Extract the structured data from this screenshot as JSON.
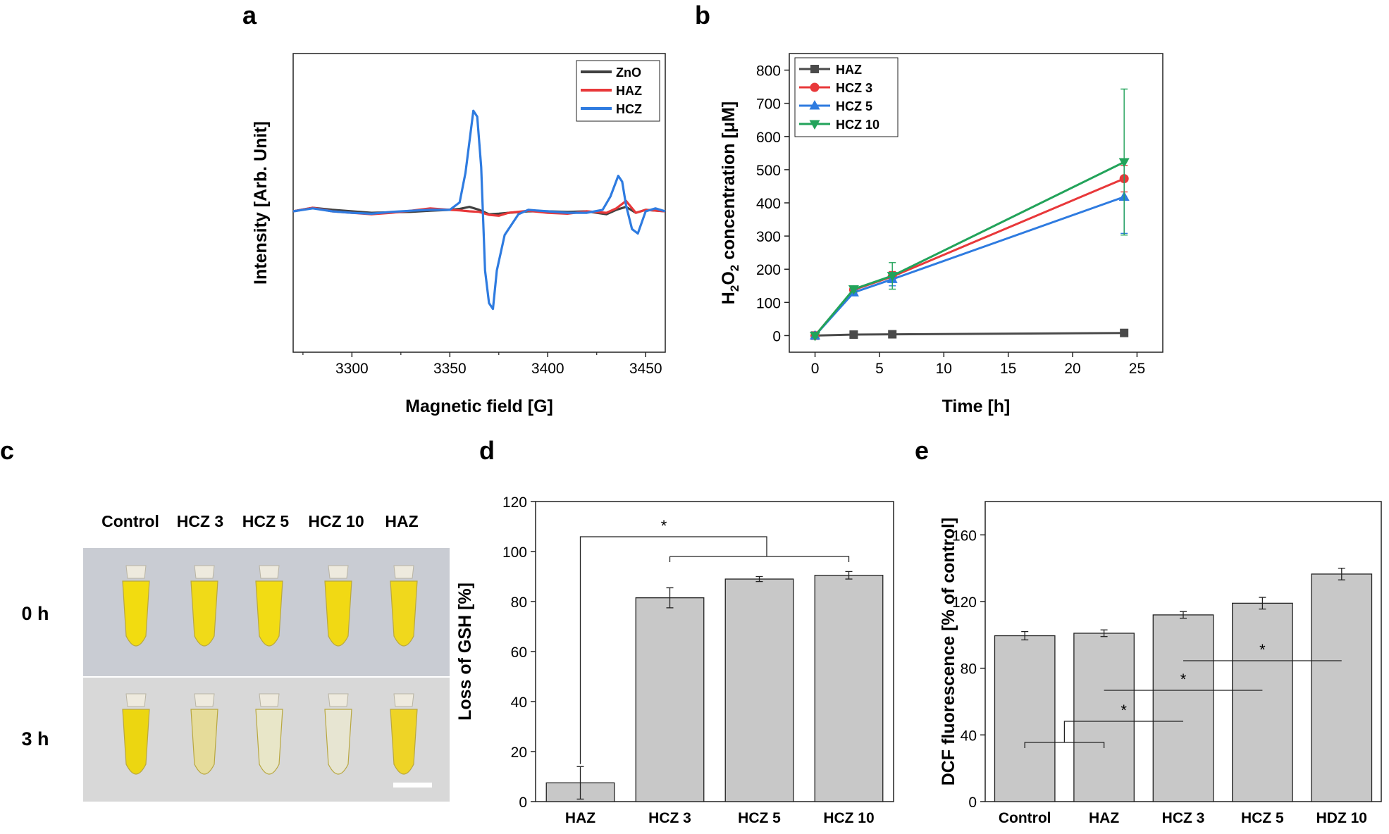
{
  "panels": {
    "a": {
      "letter": "a"
    },
    "b": {
      "letter": "b"
    },
    "c": {
      "letter": "c"
    },
    "d": {
      "letter": "d"
    },
    "e": {
      "letter": "e"
    }
  },
  "chart_data": [
    {
      "id": "a",
      "type": "line",
      "xlabel": "Magnetic field [G]",
      "ylabel": "Intensity [Arb. Unit]",
      "xlim": [
        3270,
        3460
      ],
      "xticks": [
        3300,
        3350,
        3400,
        3450
      ],
      "yticks_shown": false,
      "legend_position": "top-right",
      "series": [
        {
          "name": "ZnO",
          "color": "#404040",
          "x": [
            3270,
            3280,
            3290,
            3300,
            3310,
            3320,
            3330,
            3340,
            3350,
            3355,
            3360,
            3365,
            3370,
            3375,
            3380,
            3390,
            3400,
            3410,
            3420,
            3430,
            3435,
            3440,
            3445,
            3450,
            3460
          ],
          "y": [
            0,
            0.12,
            0.05,
            0,
            -0.05,
            -0.03,
            -0.02,
            0.02,
            0.05,
            0.08,
            0.15,
            0.05,
            -0.1,
            -0.08,
            -0.05,
            0,
            0,
            -0.02,
            0,
            -0.1,
            0.05,
            0.15,
            -0.05,
            0.05,
            0
          ]
        },
        {
          "name": "HAZ",
          "color": "#e8383a",
          "x": [
            3270,
            3280,
            3290,
            3300,
            3310,
            3320,
            3330,
            3340,
            3350,
            3355,
            3360,
            3365,
            3370,
            3375,
            3380,
            3390,
            3400,
            3410,
            3420,
            3430,
            3435,
            3440,
            3445,
            3450,
            3460
          ],
          "y": [
            0,
            0.12,
            0,
            -0.05,
            -0.1,
            -0.05,
            0.02,
            0.1,
            0.05,
            0.03,
            0,
            -0.02,
            -0.12,
            -0.15,
            -0.05,
            0.02,
            -0.05,
            -0.08,
            0,
            -0.05,
            0.1,
            0.35,
            -0.05,
            0.05,
            0
          ]
        },
        {
          "name": "HCZ",
          "color": "#2e7be0",
          "x": [
            3270,
            3280,
            3290,
            3300,
            3310,
            3320,
            3330,
            3340,
            3350,
            3355,
            3358,
            3362,
            3364,
            3366,
            3368,
            3370,
            3372,
            3374,
            3378,
            3385,
            3390,
            3400,
            3410,
            3420,
            3428,
            3432,
            3436,
            3438,
            3440,
            3443,
            3446,
            3450,
            3455,
            3460
          ],
          "y": [
            0,
            0.1,
            0,
            -0.05,
            -0.08,
            -0.02,
            0.02,
            0.05,
            0.05,
            0.3,
            1.3,
            3.4,
            3.2,
            1.5,
            -2.0,
            -3.1,
            -3.3,
            -2.0,
            -0.8,
            -0.1,
            0.05,
            0,
            -0.05,
            -0.05,
            0.05,
            0.5,
            1.2,
            1.0,
            0.2,
            -0.6,
            -0.75,
            0,
            0.1,
            0
          ]
        }
      ]
    },
    {
      "id": "b",
      "type": "line",
      "xlabel": "Time [h]",
      "ylabel_main": "H",
      "ylabel_sub1": "2",
      "ylabel_mid": "O",
      "ylabel_sub2": "2",
      "ylabel_rest": " concentration [μM]",
      "xlim": [
        -2,
        27
      ],
      "ylim": [
        -50,
        850
      ],
      "xticks": [
        0,
        5,
        10,
        15,
        20,
        25
      ],
      "yticks": [
        0,
        100,
        200,
        300,
        400,
        500,
        600,
        700,
        800
      ],
      "legend_position": "top-left",
      "x": [
        0,
        3,
        6,
        24
      ],
      "series": [
        {
          "name": "HAZ",
          "color": "#4a4a4a",
          "marker": "square",
          "values": [
            0,
            3,
            4,
            8
          ],
          "errors": [
            2,
            2,
            2,
            3
          ]
        },
        {
          "name": "HCZ 3",
          "color": "#e8383a",
          "marker": "circle",
          "values": [
            0,
            138,
            178,
            473
          ],
          "errors": [
            5,
            8,
            15,
            40
          ]
        },
        {
          "name": "HCZ 5",
          "color": "#2e7be0",
          "marker": "triangle-up",
          "values": [
            0,
            130,
            170,
            418
          ],
          "errors": [
            5,
            8,
            20,
            110
          ]
        },
        {
          "name": "HCZ 10",
          "color": "#22a35a",
          "marker": "triangle-down",
          "values": [
            0,
            140,
            180,
            523
          ],
          "errors": [
            5,
            8,
            40,
            220
          ]
        }
      ]
    },
    {
      "id": "d",
      "type": "bar",
      "ylabel": "Loss of GSH [%]",
      "ylim": [
        0,
        120
      ],
      "yticks": [
        0,
        20,
        40,
        60,
        80,
        100,
        120
      ],
      "categories": [
        "HAZ",
        "HCZ 3",
        "HCZ 5",
        "HCZ 10"
      ],
      "values": [
        7.5,
        81.5,
        89,
        90.5
      ],
      "errors": [
        6.5,
        4,
        1,
        1.5
      ],
      "bar_color": "#c8c8c8",
      "annotations": [
        {
          "text": "*"
        }
      ]
    },
    {
      "id": "e",
      "type": "bar",
      "ylabel": "DCF fluorescence [% of control]",
      "ylim": [
        0,
        180
      ],
      "yticks": [
        0,
        40,
        80,
        120,
        160
      ],
      "categories": [
        "Control",
        "HAZ",
        "HCZ 3",
        "HCZ 5",
        "HDZ 10"
      ],
      "values": [
        99.5,
        101,
        112,
        119,
        136.5
      ],
      "errors": [
        2.5,
        2,
        2,
        3.5,
        3.5
      ],
      "bar_color": "#c8c8c8",
      "annotations": [
        {
          "text": "*"
        },
        {
          "text": "*"
        },
        {
          "text": "*"
        }
      ]
    }
  ],
  "photo": {
    "columns": [
      "Control",
      "HCZ 3",
      "HCZ 5",
      "HCZ 10",
      "HAZ"
    ],
    "rows": [
      "0 h",
      "3 h"
    ],
    "tube_colors_0h": [
      "#f2dc10",
      "#f0da18",
      "#f2dc14",
      "#f1d914",
      "#f0d81c"
    ],
    "tube_colors_3h": [
      "#ecd611",
      "#e6dc9a",
      "#e8e6c8",
      "#e7e5d2",
      "#eed426"
    ]
  }
}
